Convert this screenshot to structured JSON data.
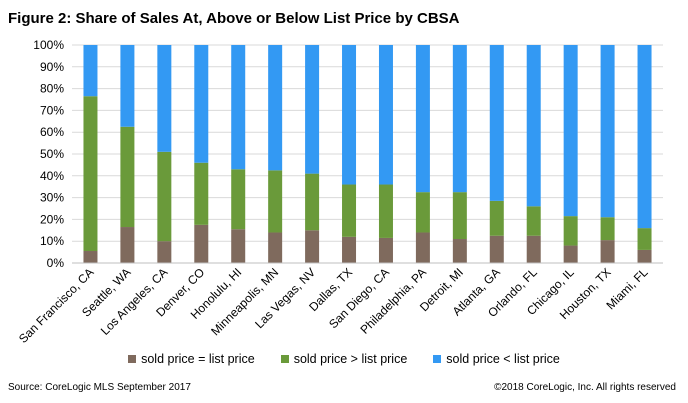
{
  "title": "Figure 2:  Share of Sales At,  Above or Below List Price by CBSA",
  "source": "Source: CoreLogic MLS September 2017",
  "copyright": "©2018 CoreLogic, Inc.  All rights reserved",
  "colors": {
    "at": "#7f6a5d",
    "above": "#6a9a3a",
    "below": "#3399f3",
    "grid": "#d9d9d9"
  },
  "chart_data": {
    "type": "bar",
    "stacked": true,
    "percent_axis": true,
    "title": "Figure 2:  Share of Sales At,  Above or Below List Price by CBSA",
    "ylim": [
      0,
      100
    ],
    "yticks": [
      "0%",
      "10%",
      "20%",
      "30%",
      "40%",
      "50%",
      "60%",
      "70%",
      "80%",
      "90%",
      "100%"
    ],
    "grid": true,
    "legend_position": "bottom",
    "categories": [
      "San Francisco, CA",
      "Seattle, WA",
      "Los Angeles, CA",
      "Denver, CO",
      "Honolulu, HI",
      "Minneapolis, MN",
      "Las Vegas, NV",
      "Dallas, TX",
      "San Diego, CA",
      "Philadelphia, PA",
      "Detroit, MI",
      "Atlanta, GA",
      "Orlando, FL",
      "Chicago, IL",
      "Houston, TX",
      "Miami, FL"
    ],
    "series": [
      {
        "name": "sold price = list price",
        "color": "#7f6a5d",
        "values": [
          5.5,
          16.5,
          10,
          17.5,
          15.5,
          14,
          15,
          12,
          11.5,
          14,
          11,
          12.5,
          12.5,
          8,
          10.5,
          6
        ]
      },
      {
        "name": "sold price > list price",
        "color": "#6a9a3a",
        "values": [
          71,
          46,
          41,
          28.5,
          27.5,
          28.5,
          26,
          24,
          24.5,
          18.5,
          21.5,
          16,
          13.5,
          13.5,
          10.5,
          10
        ]
      },
      {
        "name": "sold price < list price",
        "color": "#3399f3",
        "values": [
          23.5,
          37.5,
          49,
          54,
          57,
          57.5,
          59,
          64,
          64,
          67.5,
          67.5,
          71.5,
          74,
          78.5,
          79,
          84
        ]
      }
    ]
  }
}
